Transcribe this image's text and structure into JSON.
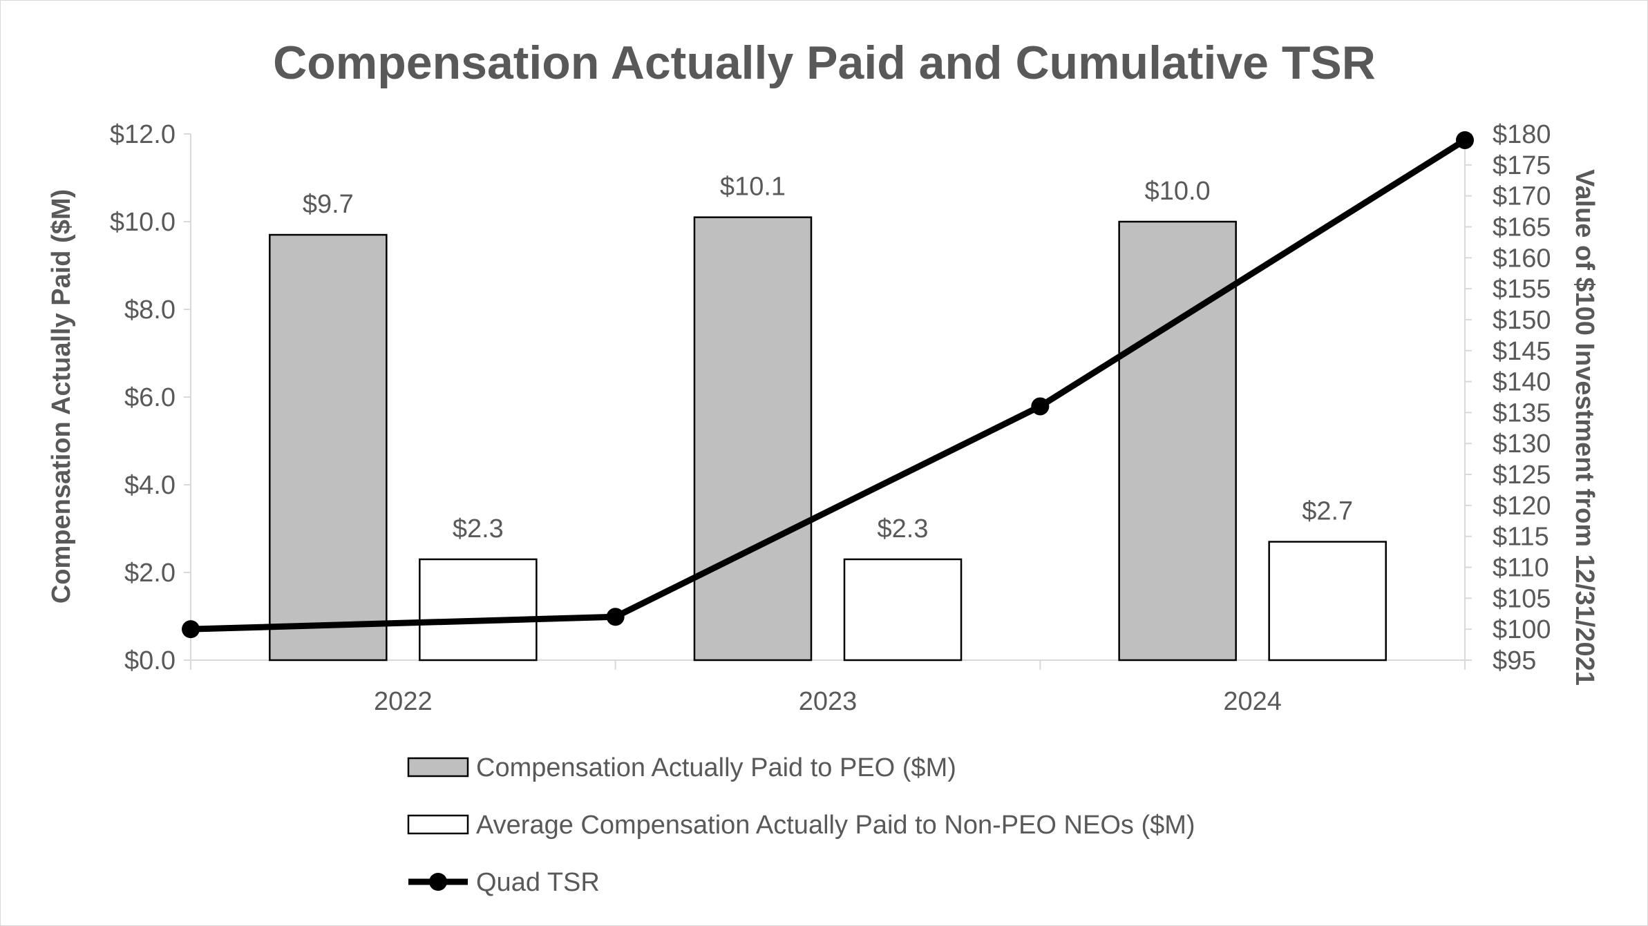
{
  "chart_data": {
    "type": "bar",
    "title": "Compensation Actually Paid and Cumulative TSR",
    "categories": [
      "2022",
      "2023",
      "2024"
    ],
    "ylabel": "Compensation Actually Paid ($M)",
    "y2label": "Value of $100 Investment from 12/31/2021",
    "ylim": [
      0,
      12
    ],
    "y2lim": [
      95,
      180
    ],
    "yticks": [
      "$0.0",
      "$2.0",
      "$4.0",
      "$6.0",
      "$8.0",
      "$10.0",
      "$12.0"
    ],
    "y2ticks": [
      "$95",
      "$100",
      "$105",
      "$110",
      "$115",
      "$120",
      "$125",
      "$130",
      "$135",
      "$140",
      "$145",
      "$150",
      "$155",
      "$160",
      "$165",
      "$170",
      "$175",
      "$180"
    ],
    "series": [
      {
        "name": "Compensation Actually Paid to PEO ($M)",
        "type": "bar",
        "values": [
          9.7,
          10.1,
          10.0
        ],
        "labels": [
          "$9.7",
          "$10.1",
          "$10.0"
        ],
        "color": "#bfbfbf"
      },
      {
        "name": "Average Compensation Actually Paid to Non-PEO NEOs ($M)",
        "type": "bar",
        "values": [
          2.3,
          2.3,
          2.7
        ],
        "labels": [
          "$2.3",
          "$2.3",
          "$2.7"
        ],
        "color": "#ffffff"
      },
      {
        "name": "Quad TSR",
        "type": "line",
        "axis": "secondary",
        "x": [
          "12/31/2021",
          "2022",
          "2023",
          "2024"
        ],
        "values": [
          100,
          102,
          136,
          179
        ],
        "color": "#000000"
      }
    ],
    "legend_position": "bottom",
    "grid": false
  }
}
